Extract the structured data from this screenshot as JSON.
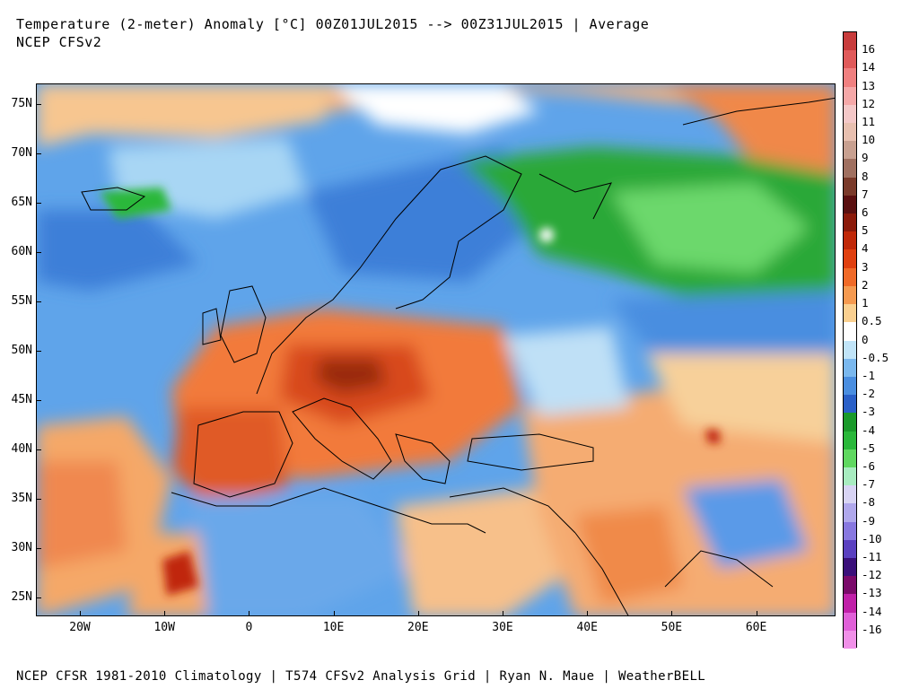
{
  "header": {
    "title_line1": "Temperature (2-meter) Anomaly  [°C] 00Z01JUL2015 --> 00Z31JUL2015 | Average",
    "title_line2": "NCEP CFSv2"
  },
  "footer": {
    "text": "NCEP CFSR 1981-2010 Climatology | T574 CFSv2 Analysis Grid | Ryan N. Maue | WeatherBELL"
  },
  "map": {
    "lat_labels": [
      "75N",
      "70N",
      "65N",
      "60N",
      "55N",
      "50N",
      "45N",
      "40N",
      "35N",
      "30N",
      "25N"
    ],
    "lon_labels": [
      "20W",
      "10W",
      "0",
      "10E",
      "20E",
      "30E",
      "40E",
      "50E",
      "60E"
    ]
  },
  "colorbar": {
    "labels": [
      "16",
      "14",
      "13",
      "12",
      "11",
      "10",
      "9",
      "8",
      "7",
      "6",
      "5",
      "4",
      "3",
      "2",
      "1",
      "0.5",
      "0",
      "-0.5",
      "-1",
      "-2",
      "-3",
      "-4",
      "-5",
      "-6",
      "-7",
      "-8",
      "-9",
      "-10",
      "-11",
      "-12",
      "-13",
      "-14",
      "-16"
    ],
    "colors": [
      "#c83c3c",
      "#e05a5a",
      "#f08080",
      "#f5a8a8",
      "#f4c8c8",
      "#e8c0b0",
      "#c8a090",
      "#a07060",
      "#7a3a2a",
      "#5a1010",
      "#8b1a0a",
      "#c02808",
      "#e04010",
      "#f06a28",
      "#f59a50",
      "#fad090",
      "#ffffff",
      "#c0e4f8",
      "#7ab8ee",
      "#4a8ee0",
      "#2a60c8",
      "#1a9a2a",
      "#2ab83a",
      "#60d860",
      "#a8ecc0",
      "#d8d4f4",
      "#b0a8ec",
      "#8878e0",
      "#5a40c0",
      "#3a107a",
      "#7a0a6a",
      "#c020a8",
      "#e060d8",
      "#f090e8"
    ]
  }
}
